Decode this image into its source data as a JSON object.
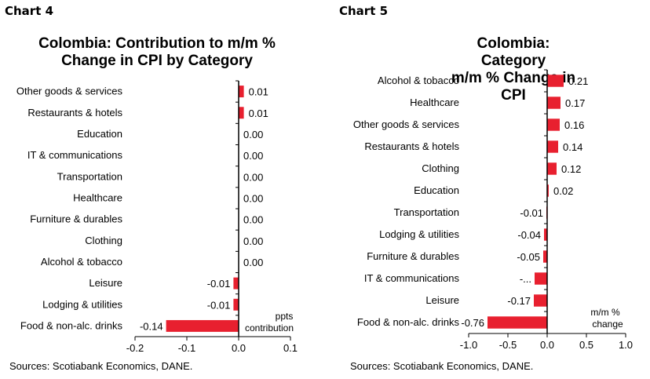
{
  "chart4": {
    "panel_label": "Chart 4",
    "title_line1": "Colombia: Contribution to m/m %",
    "title_line2": "Change in CPI by Category",
    "source": "Sources: Scotiabank Economics, DANE.",
    "unit_line1": "ppts",
    "unit_line2": "contribution"
  },
  "chart5": {
    "panel_label": "Chart 5",
    "title_line1": "Colombia: Category",
    "title_line2": "m/m % Change in CPI",
    "source": "Sources: Scotiabank Economics, DANE.",
    "unit_line1": "m/m %",
    "unit_line2": "change"
  },
  "chart_data": [
    {
      "type": "bar",
      "orientation": "horizontal",
      "title": "Colombia: Contribution to m/m % Change in CPI by Category",
      "categories": [
        "Other goods & services",
        "Restaurants & hotels",
        "Education",
        "IT & communications",
        "Transportation",
        "Healthcare",
        "Furniture & durables",
        "Clothing",
        "Alcohol & tobacco",
        "Leisure",
        "Lodging & utilities",
        "Food & non-alc. drinks"
      ],
      "values": [
        0.01,
        0.01,
        0.0,
        0.0,
        0.0,
        0.0,
        0.0,
        0.0,
        0.0,
        -0.01,
        -0.01,
        -0.14
      ],
      "value_labels": [
        "0.01",
        "0.01",
        "0.00",
        "0.00",
        "0.00",
        "0.00",
        "0.00",
        "0.00",
        "0.00",
        "-0.01",
        "-0.01",
        "-0.14"
      ],
      "xlabel": "ppts contribution",
      "xlim": [
        -0.2,
        0.1
      ],
      "xticks": [
        -0.2,
        -0.1,
        0.0,
        0.1
      ],
      "xtick_labels": [
        "-0.2",
        "-0.1",
        "0.0",
        "0.1"
      ],
      "bar_color": "#e8202f",
      "grid": false
    },
    {
      "type": "bar",
      "orientation": "horizontal",
      "title": "Colombia: Category m/m % Change in CPI",
      "categories": [
        "Alcohol & tobacco",
        "Healthcare",
        "Other goods & services",
        "Restaurants & hotels",
        "Clothing",
        "Education",
        "Transportation",
        "Lodging & utilities",
        "Furniture & durables",
        "IT & communications",
        "Leisure",
        "Food & non-alc. drinks"
      ],
      "values": [
        0.21,
        0.17,
        0.16,
        0.14,
        0.12,
        0.02,
        -0.01,
        -0.04,
        -0.05,
        -0.16,
        -0.17,
        -0.76
      ],
      "value_labels": [
        "0.21",
        "0.17",
        "0.16",
        "0.14",
        "0.12",
        "0.02",
        "-0.01",
        "-0.04",
        "-0.05",
        "-...",
        "-0.17",
        "-0.76"
      ],
      "xlabel": "m/m % change",
      "xlim": [
        -1.0,
        1.0
      ],
      "xticks": [
        -1.0,
        -0.5,
        0.0,
        0.5,
        1.0
      ],
      "xtick_labels": [
        "-1.0",
        "-0.5",
        "0.0",
        "0.5",
        "1.0"
      ],
      "bar_color": "#e8202f",
      "grid": false
    }
  ]
}
